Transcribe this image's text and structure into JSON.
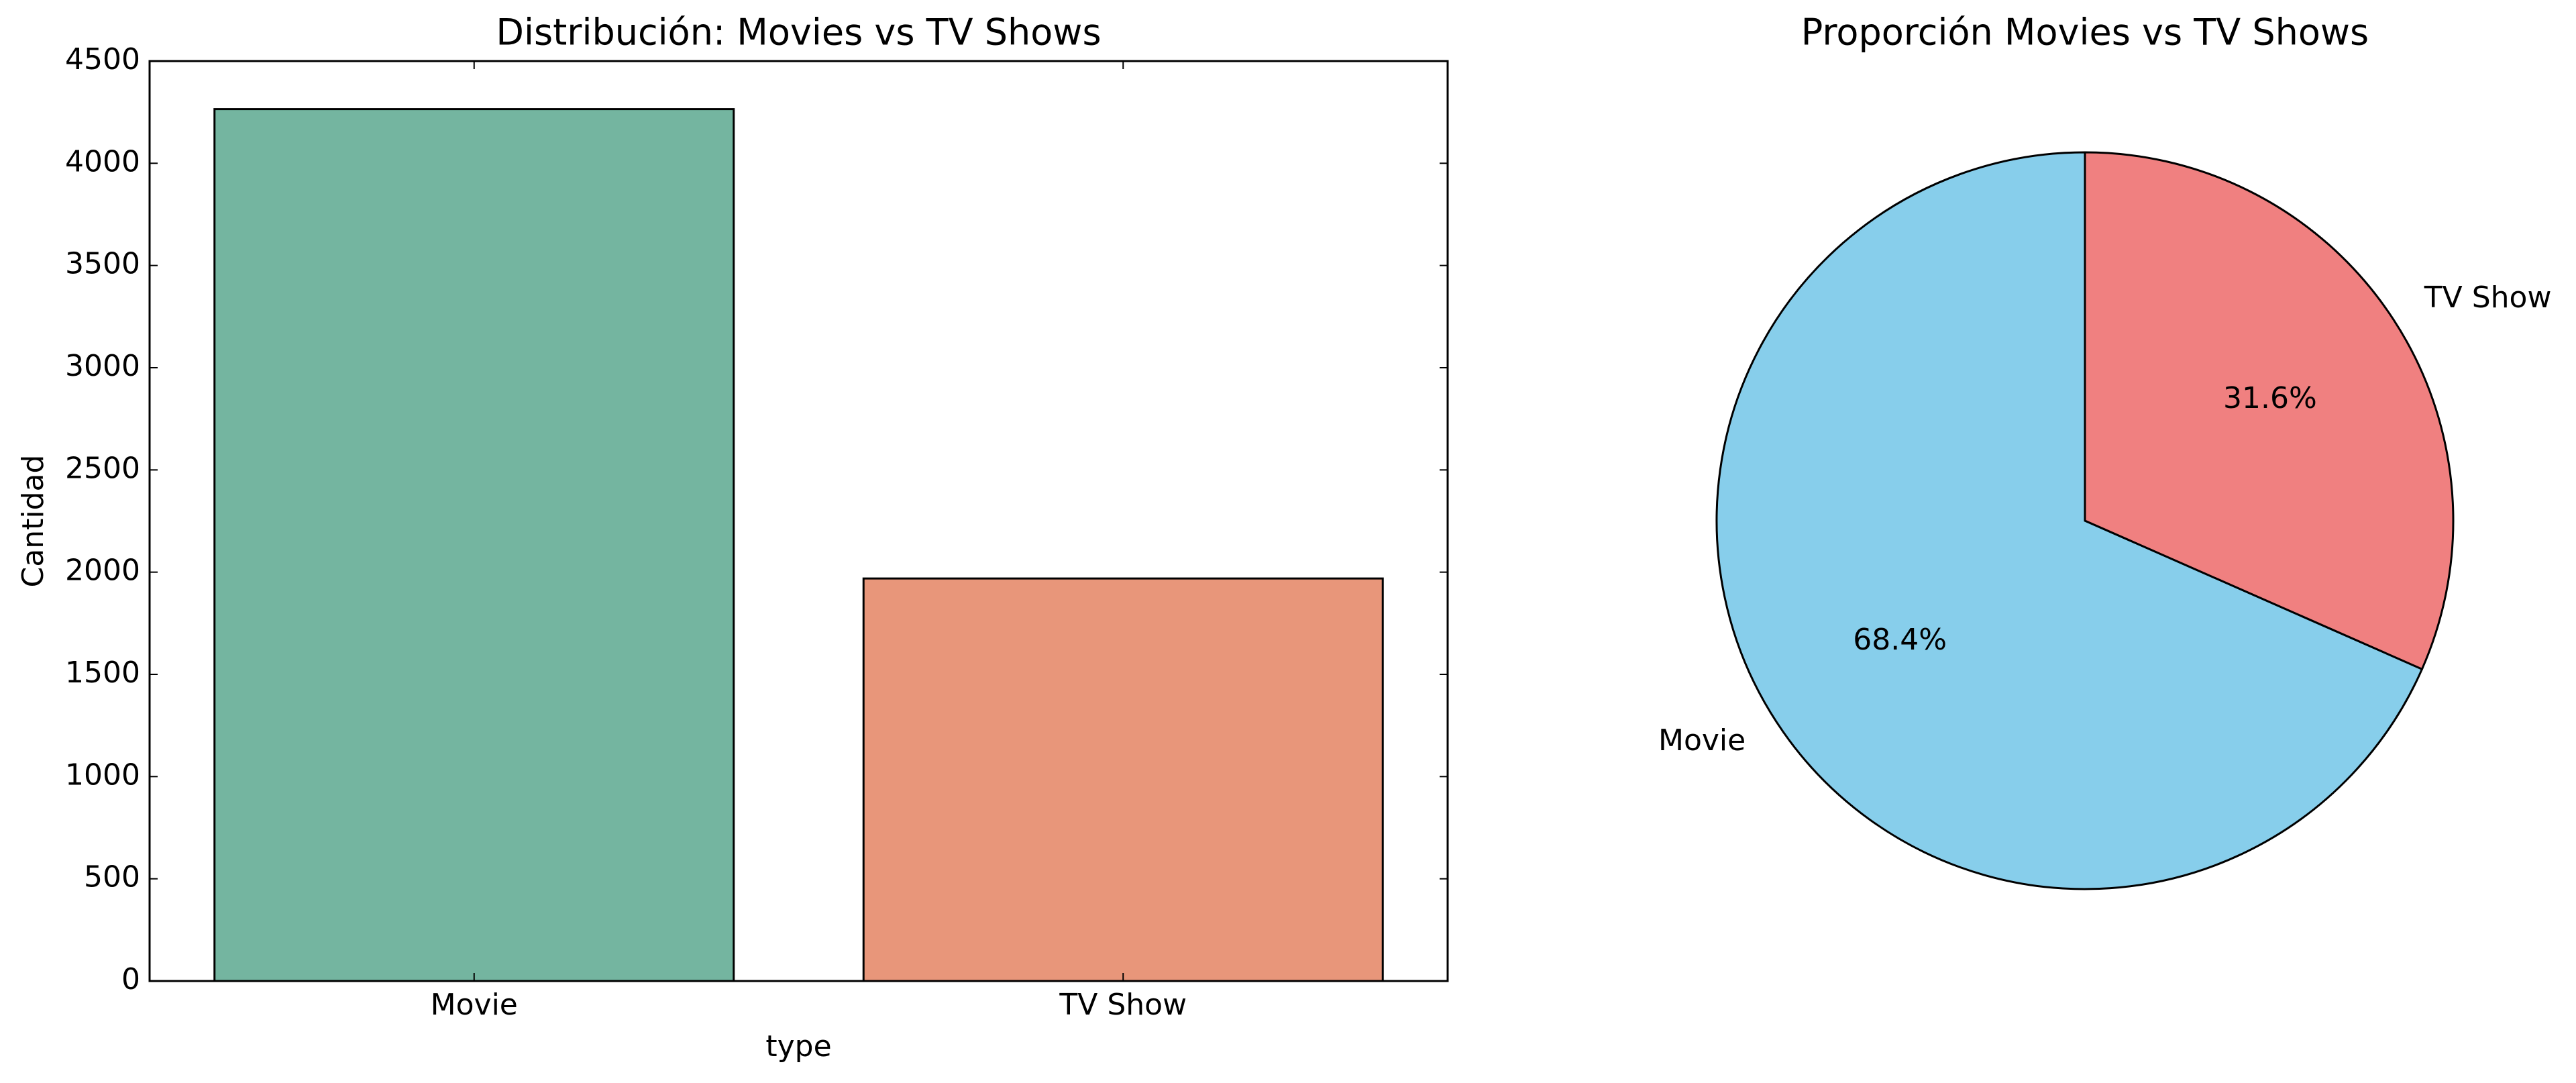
{
  "chart_data": [
    {
      "type": "bar",
      "title": "Distribución: Movies vs TV Shows",
      "x_label": "type",
      "y_label": "Cantidad",
      "categories": [
        "Movie",
        "TV Show"
      ],
      "values": [
        4265,
        1969
      ],
      "colors": [
        "#74b5a0",
        "#e8967a"
      ],
      "ylim": [
        0,
        4500
      ],
      "yticks": [
        0,
        500,
        1000,
        1500,
        2000,
        2500,
        3000,
        3500,
        4000,
        4500
      ]
    },
    {
      "type": "pie",
      "title": "Proporción Movies vs TV Shows",
      "categories": [
        "Movie",
        "TV Show"
      ],
      "values": [
        68.4,
        31.6
      ],
      "value_labels": [
        "68.4%",
        "31.6%"
      ],
      "colors": [
        "#87ceeb",
        "#f08080"
      ]
    }
  ]
}
